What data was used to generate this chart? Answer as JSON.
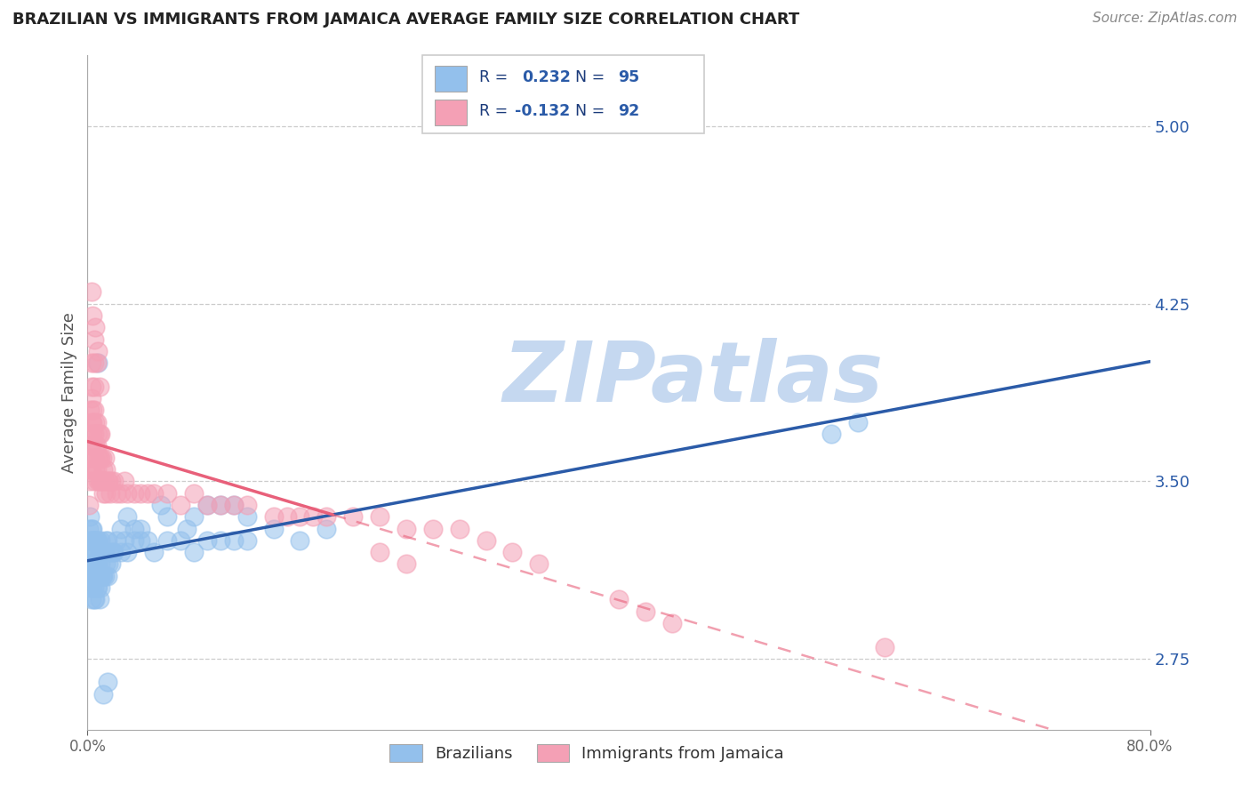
{
  "title": "BRAZILIAN VS IMMIGRANTS FROM JAMAICA AVERAGE FAMILY SIZE CORRELATION CHART",
  "source": "Source: ZipAtlas.com",
  "ylabel": "Average Family Size",
  "xlim": [
    0.0,
    0.8
  ],
  "ylim": [
    2.45,
    5.3
  ],
  "yticks": [
    2.75,
    3.5,
    4.25,
    5.0
  ],
  "xticks": [
    0.0,
    0.8
  ],
  "xtick_labels": [
    "0.0%",
    "80.0%"
  ],
  "blue_color": "#93C0EC",
  "pink_color": "#F4A0B5",
  "blue_line_color": "#2B5BA8",
  "pink_line_color": "#E8607A",
  "pink_line_dash_color": "#E8A0B0",
  "blue_label": "Brazilians",
  "pink_label": "Immigrants from Jamaica",
  "R_blue": 0.232,
  "N_blue": 95,
  "R_pink": -0.132,
  "N_pink": 92,
  "watermark": "ZIPatlas",
  "watermark_color": "#C5D8F0",
  "title_color": "#222222",
  "axis_label_color": "#555555",
  "tick_color": "#2B5BA8",
  "grid_color": "#CCCCCC",
  "legend_text_color": "#1A3A7A",
  "legend_num_color": "#2B5BA8",
  "blue_x": [
    0.001,
    0.001,
    0.001,
    0.002,
    0.002,
    0.002,
    0.002,
    0.002,
    0.003,
    0.003,
    0.003,
    0.003,
    0.003,
    0.003,
    0.003,
    0.004,
    0.004,
    0.004,
    0.004,
    0.004,
    0.005,
    0.005,
    0.005,
    0.005,
    0.005,
    0.005,
    0.006,
    0.006,
    0.006,
    0.006,
    0.007,
    0.007,
    0.007,
    0.007,
    0.008,
    0.008,
    0.008,
    0.008,
    0.009,
    0.009,
    0.009,
    0.01,
    0.01,
    0.01,
    0.01,
    0.011,
    0.011,
    0.012,
    0.012,
    0.013,
    0.013,
    0.014,
    0.014,
    0.015,
    0.015,
    0.016,
    0.017,
    0.018,
    0.019,
    0.02,
    0.022,
    0.025,
    0.028,
    0.03,
    0.035,
    0.04,
    0.045,
    0.05,
    0.06,
    0.07,
    0.08,
    0.09,
    0.1,
    0.11,
    0.12,
    0.14,
    0.16,
    0.18,
    0.025,
    0.03,
    0.035,
    0.04,
    0.055,
    0.06,
    0.075,
    0.08,
    0.09,
    0.1,
    0.11,
    0.12,
    0.56,
    0.58,
    0.012,
    0.015,
    0.008
  ],
  "blue_y": [
    3.2,
    3.1,
    3.3,
    3.15,
    3.25,
    3.05,
    3.2,
    3.35,
    3.1,
    3.2,
    3.3,
    3.0,
    3.1,
    3.25,
    3.15,
    3.05,
    3.15,
    3.3,
    3.1,
    3.25,
    3.0,
    3.1,
    3.2,
    3.05,
    3.15,
    3.25,
    3.0,
    3.1,
    3.15,
    3.25,
    3.05,
    3.15,
    3.25,
    3.1,
    3.05,
    3.15,
    3.25,
    3.1,
    3.0,
    3.1,
    3.2,
    3.05,
    3.15,
    3.25,
    3.1,
    3.1,
    3.2,
    3.1,
    3.2,
    3.1,
    3.2,
    3.15,
    3.25,
    3.1,
    3.25,
    3.15,
    3.2,
    3.15,
    3.2,
    3.2,
    3.25,
    3.2,
    3.25,
    3.2,
    3.25,
    3.25,
    3.25,
    3.2,
    3.25,
    3.25,
    3.2,
    3.25,
    3.25,
    3.25,
    3.25,
    3.3,
    3.25,
    3.3,
    3.3,
    3.35,
    3.3,
    3.3,
    3.4,
    3.35,
    3.3,
    3.35,
    3.4,
    3.4,
    3.4,
    3.35,
    3.7,
    3.75,
    2.6,
    2.65,
    4.0
  ],
  "pink_x": [
    0.001,
    0.001,
    0.001,
    0.002,
    0.002,
    0.002,
    0.002,
    0.003,
    0.003,
    0.003,
    0.003,
    0.003,
    0.003,
    0.004,
    0.004,
    0.004,
    0.004,
    0.005,
    0.005,
    0.005,
    0.005,
    0.005,
    0.005,
    0.006,
    0.006,
    0.006,
    0.007,
    0.007,
    0.007,
    0.008,
    0.008,
    0.008,
    0.009,
    0.009,
    0.009,
    0.01,
    0.01,
    0.01,
    0.011,
    0.011,
    0.012,
    0.012,
    0.013,
    0.013,
    0.014,
    0.014,
    0.015,
    0.016,
    0.017,
    0.018,
    0.02,
    0.022,
    0.025,
    0.028,
    0.03,
    0.035,
    0.04,
    0.045,
    0.05,
    0.06,
    0.07,
    0.08,
    0.09,
    0.1,
    0.11,
    0.12,
    0.14,
    0.16,
    0.18,
    0.2,
    0.22,
    0.24,
    0.26,
    0.28,
    0.3,
    0.32,
    0.34,
    0.003,
    0.004,
    0.005,
    0.006,
    0.007,
    0.008,
    0.009,
    0.15,
    0.17,
    0.4,
    0.42,
    0.44,
    0.6,
    0.22,
    0.24
  ],
  "pink_y": [
    3.4,
    3.55,
    3.6,
    3.5,
    3.65,
    3.7,
    3.8,
    3.55,
    3.65,
    3.75,
    3.85,
    3.9,
    4.0,
    3.6,
    3.7,
    3.75,
    3.8,
    3.5,
    3.6,
    3.7,
    3.8,
    3.9,
    4.0,
    3.55,
    3.65,
    3.75,
    3.55,
    3.65,
    3.75,
    3.5,
    3.6,
    3.7,
    3.5,
    3.6,
    3.7,
    3.5,
    3.6,
    3.7,
    3.5,
    3.6,
    3.45,
    3.55,
    3.5,
    3.6,
    3.45,
    3.55,
    3.5,
    3.5,
    3.45,
    3.5,
    3.5,
    3.45,
    3.45,
    3.5,
    3.45,
    3.45,
    3.45,
    3.45,
    3.45,
    3.45,
    3.4,
    3.45,
    3.4,
    3.4,
    3.4,
    3.4,
    3.35,
    3.35,
    3.35,
    3.35,
    3.35,
    3.3,
    3.3,
    3.3,
    3.25,
    3.2,
    3.15,
    4.3,
    4.2,
    4.1,
    4.15,
    4.0,
    4.05,
    3.9,
    3.35,
    3.35,
    3.0,
    2.95,
    2.9,
    2.8,
    3.2,
    3.15
  ]
}
